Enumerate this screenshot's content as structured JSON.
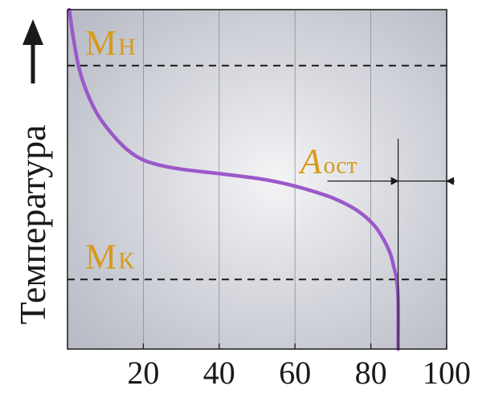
{
  "chart_data": {
    "type": "line",
    "ylabel": "Температура",
    "xlim": [
      0,
      100
    ],
    "ylim": [
      0,
      100
    ],
    "x_ticks": [
      20,
      40,
      60,
      80,
      100
    ],
    "grid": true,
    "series": [
      {
        "color": "#9b59c9",
        "x": [
          0.5,
          1.5,
          3,
          5,
          8,
          12,
          16,
          20,
          25,
          30,
          35,
          40,
          45,
          50,
          55,
          60,
          65,
          70,
          75,
          78,
          81,
          83,
          85,
          86,
          86.8,
          87.2,
          87.2
        ],
        "y": [
          100,
          92,
          83,
          76,
          69,
          63,
          58.5,
          55.7,
          54,
          53,
          52.3,
          51.7,
          51,
          50.3,
          49.3,
          48,
          46.4,
          44.5,
          41.8,
          39.5,
          36.3,
          33,
          28.5,
          24.5,
          20.5,
          14,
          0
        ]
      }
    ],
    "reference_lines": [
      {
        "label_main": "M",
        "label_sub": "Н",
        "y": 83.5
      },
      {
        "label_main": "M",
        "label_sub": "К",
        "y": 20.5
      }
    ],
    "vertical_line": {
      "x": 87.2
    },
    "annotation": {
      "label_main": "A",
      "label_sub": "ост",
      "y_data": 49.5,
      "x_from": 87.2,
      "x_to": 100
    },
    "colors": {
      "plot_bg_center": "#f4f4f6",
      "plot_bg_edge": "#b9bcc6",
      "label": "#d79a1c",
      "axis": "#1a1a1a",
      "grid": "#8a8d96"
    }
  }
}
